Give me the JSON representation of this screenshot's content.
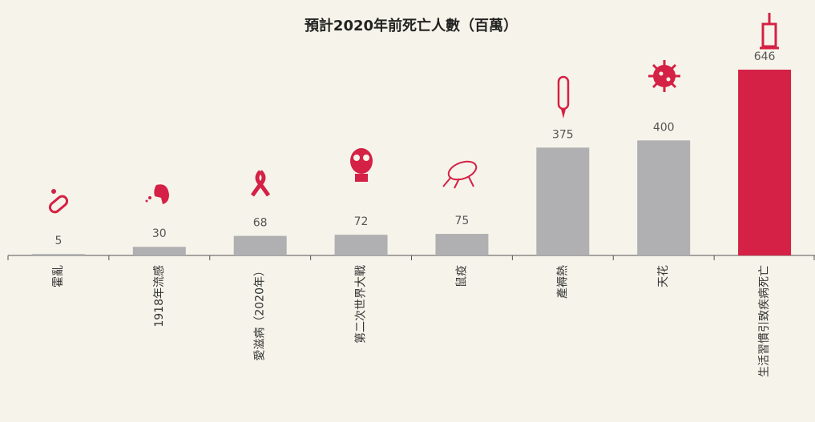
{
  "chart_data": {
    "type": "bar",
    "title": "預計2020年前死亡人數（百萬）",
    "categories": [
      "霍亂",
      "1918年流感",
      "愛滋病（2020年）",
      "第二次世界大戰",
      "鼠疫",
      "產褥熱",
      "天花",
      "生活習慣引致疾病死亡"
    ],
    "values": [
      5,
      30,
      68,
      72,
      75,
      375,
      400,
      646
    ],
    "colors": [
      "#b0b0b2",
      "#b0b0b2",
      "#b0b0b2",
      "#b0b0b2",
      "#b0b0b2",
      "#b0b0b2",
      "#b0b0b2",
      "#d42145"
    ]
  }
}
